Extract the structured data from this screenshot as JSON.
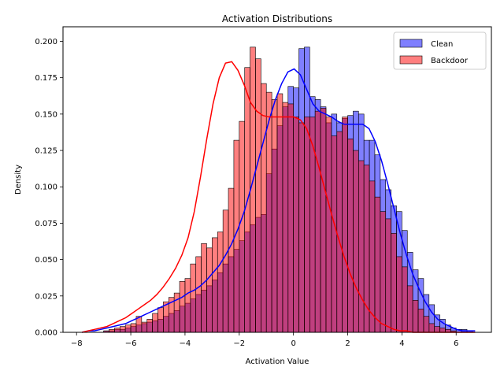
{
  "chart_data": {
    "type": "bar",
    "title": "Activation Distributions",
    "xlabel": "Activation Value",
    "ylabel": "Density",
    "xlim": [
      -8.5,
      7.3
    ],
    "ylim": [
      0,
      0.21
    ],
    "xticks": [
      -8,
      -6,
      -4,
      -2,
      0,
      2,
      4,
      6
    ],
    "xtick_labels": [
      "−8",
      "−6",
      "−4",
      "−2",
      "0",
      "2",
      "4",
      "6"
    ],
    "yticks": [
      0,
      0.025,
      0.05,
      0.075,
      0.1,
      0.125,
      0.15,
      0.175,
      0.2
    ],
    "ytick_labels": [
      "0.000",
      "0.025",
      "0.050",
      "0.075",
      "0.100",
      "0.125",
      "0.150",
      "0.175",
      "0.200"
    ],
    "grid": false,
    "legend_position": "top-right",
    "bin_start": -7.8,
    "bin_width": 0.2,
    "series": [
      {
        "name": "Clean",
        "color": "#0000ff",
        "line_color": "#0000ff",
        "values": [
          0,
          0,
          0,
          0,
          0.001,
          0.001,
          0.002,
          0.002,
          0.003,
          0.004,
          0.005,
          0.006,
          0.007,
          0.008,
          0.009,
          0.011,
          0.013,
          0.015,
          0.018,
          0.02,
          0.023,
          0.026,
          0.029,
          0.032,
          0.036,
          0.041,
          0.047,
          0.052,
          0.057,
          0.063,
          0.069,
          0.074,
          0.079,
          0.081,
          0.109,
          0.126,
          0.142,
          0.155,
          0.169,
          0.168,
          0.195,
          0.196,
          0.162,
          0.16,
          0.155,
          0.144,
          0.15,
          0.144,
          0.147,
          0.149,
          0.152,
          0.15,
          0.132,
          0.132,
          0.122,
          0.105,
          0.098,
          0.087,
          0.083,
          0.07,
          0.055,
          0.043,
          0.037,
          0.026,
          0.019,
          0.012,
          0.009,
          0.005,
          0.003,
          0.002,
          0.002,
          0.001
        ],
        "kde": [
          0,
          0.001,
          0.001,
          0.002,
          0.003,
          0.004,
          0.005,
          0.006,
          0.008,
          0.01,
          0.012,
          0.014,
          0.016,
          0.018,
          0.02,
          0.022,
          0.024,
          0.027,
          0.029,
          0.032,
          0.036,
          0.041,
          0.046,
          0.053,
          0.061,
          0.071,
          0.083,
          0.098,
          0.114,
          0.13,
          0.146,
          0.16,
          0.171,
          0.179,
          0.181,
          0.177,
          0.167,
          0.157,
          0.152,
          0.15,
          0.148,
          0.145,
          0.143,
          0.143,
          0.143,
          0.143,
          0.14,
          0.131,
          0.118,
          0.102,
          0.085,
          0.068,
          0.053,
          0.04,
          0.03,
          0.021,
          0.014,
          0.009,
          0.006,
          0.004,
          0.002,
          0.001,
          0.001,
          0.001
        ]
      },
      {
        "name": "Backdoor",
        "color": "#ff0000",
        "line_color": "#ff0000",
        "values": [
          0,
          0,
          0,
          0,
          0.001,
          0.002,
          0.003,
          0.004,
          0.005,
          0.006,
          0.011,
          0.007,
          0.009,
          0.013,
          0.017,
          0.021,
          0.024,
          0.027,
          0.035,
          0.037,
          0.047,
          0.052,
          0.061,
          0.058,
          0.065,
          0.069,
          0.084,
          0.099,
          0.132,
          0.145,
          0.182,
          0.196,
          0.188,
          0.171,
          0.165,
          0.16,
          0.164,
          0.158,
          0.157,
          0.148,
          0.144,
          0.148,
          0.148,
          0.152,
          0.154,
          0.148,
          0.135,
          0.138,
          0.148,
          0.133,
          0.125,
          0.118,
          0.115,
          0.104,
          0.093,
          0.083,
          0.078,
          0.068,
          0.052,
          0.045,
          0.032,
          0.022,
          0.016,
          0.011,
          0.006,
          0.004,
          0.003,
          0.002,
          0.001,
          0,
          0,
          0
        ],
        "kde": [
          0,
          0.001,
          0.002,
          0.003,
          0.004,
          0.006,
          0.008,
          0.01,
          0.013,
          0.016,
          0.019,
          0.022,
          0.026,
          0.031,
          0.037,
          0.044,
          0.053,
          0.065,
          0.083,
          0.107,
          0.133,
          0.157,
          0.175,
          0.185,
          0.186,
          0.18,
          0.17,
          0.158,
          0.152,
          0.149,
          0.148,
          0.148,
          0.148,
          0.148,
          0.148,
          0.146,
          0.14,
          0.128,
          0.113,
          0.097,
          0.081,
          0.066,
          0.052,
          0.04,
          0.03,
          0.022,
          0.015,
          0.01,
          0.006,
          0.004,
          0.002,
          0.001,
          0.001,
          0,
          0,
          0,
          0,
          0,
          0,
          0,
          0,
          0,
          0,
          0
        ]
      }
    ]
  }
}
